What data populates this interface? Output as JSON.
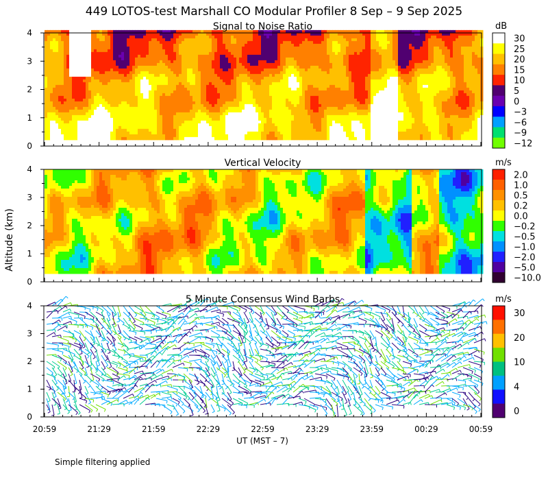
{
  "title": "449 LOTOS-test Marshall CO Modular Profiler  8 Sep –  9 Sep 2025",
  "footer": "Simple filtering applied",
  "xlabel": "UT  (MST – 7)",
  "ylabel": "Altitude (km)",
  "time_ticks": [
    "20:59",
    "21:29",
    "21:59",
    "22:29",
    "22:59",
    "23:29",
    "23:59",
    "00:29",
    "00:59"
  ],
  "chart_data": [
    {
      "type": "heatmap",
      "title": "Signal to Noise Ratio",
      "unit": "dB",
      "ylim": [
        0,
        4
      ],
      "yticks": [
        "0",
        "1",
        "2",
        "3",
        "4"
      ],
      "data_altitude_range_km": [
        0.3,
        4.1
      ],
      "legend_labels": [
        "30",
        "25",
        "20",
        "15",
        "10",
        "5",
        "0",
        "−3",
        "−6",
        "−9",
        "−12"
      ],
      "colorbar": [
        "#ffffff",
        "#ffff00",
        "#ffc000",
        "#ff8000",
        "#ff2400",
        "#500070",
        "#6a00b0",
        "#0000ff",
        "#00a0ff",
        "#00e070",
        "#70ff00"
      ],
      "level_values": [
        30,
        25,
        20,
        15,
        10,
        5,
        0,
        -3,
        -6,
        -9,
        -12
      ]
    },
    {
      "type": "heatmap",
      "title": "Vertical Velocity",
      "unit": "m/s",
      "ylim": [
        0,
        4
      ],
      "yticks": [
        "0",
        "1",
        "2",
        "3",
        "4"
      ],
      "data_altitude_range_km": [
        0.3,
        4.0
      ],
      "legend_labels": [
        "2.0",
        "1.0",
        "0.5",
        "0.2",
        "0.0",
        "−0.2",
        "−0.5",
        "−1.0",
        "−2.0",
        "−5.0",
        "−10.0"
      ],
      "colorbar": [
        "#ff2000",
        "#ff6000",
        "#ff9000",
        "#ffc000",
        "#ffff00",
        "#30ff00",
        "#00e0e0",
        "#0090ff",
        "#2020ff",
        "#5000a0",
        "#300030"
      ],
      "level_values": [
        2.0,
        1.0,
        0.5,
        0.2,
        0.0,
        -0.2,
        -0.5,
        -1.0,
        -2.0,
        -5.0,
        -10.0
      ]
    },
    {
      "type": "wind-barbs",
      "title": "5 Minute Consensus Wind Barbs",
      "unit": "m/s",
      "ylim": [
        0,
        4
      ],
      "yticks": [
        "0",
        "1",
        "2",
        "3",
        "4"
      ],
      "data_altitude_range_km": [
        0.3,
        4.0
      ],
      "legend_labels": [
        "30",
        "20",
        "10",
        "4",
        "0"
      ],
      "colorbar": [
        "#ff1000",
        "#ff7000",
        "#ffc000",
        "#70e000",
        "#00c080",
        "#00a0ff",
        "#1010ff",
        "#500070"
      ],
      "speed_colors": {
        "slow": "#2a0080",
        "light": "#00aaff",
        "moderate": "#00cc90",
        "fresh": "#70e000",
        "strong": "#ff8000"
      }
    }
  ]
}
